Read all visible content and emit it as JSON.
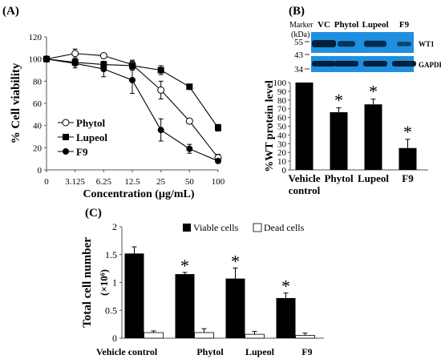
{
  "colors": {
    "bar_dark": "#000000",
    "bar_light": "#ffffff",
    "blot_bg": "#1f8fe0",
    "band": "#03203a"
  },
  "chart_data": [
    {
      "panel": "(A)",
      "type": "line",
      "xlabel": "Concentration (µg/mL)",
      "ylabel": "% Cell viability",
      "x_categories": [
        "0",
        "3.125",
        "6.25",
        "12.5",
        "25",
        "50",
        "100"
      ],
      "ylim": [
        0,
        120
      ],
      "yticks": [
        0,
        20,
        40,
        60,
        80,
        100,
        120
      ],
      "series": [
        {
          "name": "Phytol",
          "marker": "open-circle",
          "values": [
            100,
            105,
            103,
            95,
            72,
            44,
            11
          ],
          "errors": [
            0,
            4,
            2,
            4,
            8,
            0,
            3
          ]
        },
        {
          "name": "Lupeol",
          "marker": "filled-square",
          "values": [
            100,
            97,
            95,
            94,
            90,
            75,
            38
          ],
          "errors": [
            0,
            2,
            2,
            4,
            4,
            0,
            3
          ]
        },
        {
          "name": "F9",
          "marker": "filled-circle",
          "values": [
            100,
            96,
            91,
            81,
            36,
            19,
            8
          ],
          "errors": [
            0,
            4,
            7,
            12,
            10,
            4,
            1
          ]
        }
      ],
      "legend": "center-left"
    },
    {
      "panel": "(B)",
      "type": "bar",
      "ylabel": "%WT protein level",
      "categories": [
        "Vehicle\ncontrol",
        "Phytol",
        "Lupeol",
        "F9"
      ],
      "category_lines": [
        [
          "Vehicle",
          "control"
        ],
        [
          "Phytol"
        ],
        [
          "Lupeol"
        ],
        [
          "F9"
        ]
      ],
      "values": [
        100,
        66,
        75,
        25
      ],
      "errors": [
        0,
        5,
        6,
        10
      ],
      "significance": [
        "",
        "*",
        "*",
        "*"
      ],
      "ylim": [
        0,
        100
      ],
      "yticks": [
        0,
        10,
        20,
        30,
        40,
        50,
        60,
        70,
        80,
        90,
        100
      ],
      "blot": {
        "marker_title": [
          "Marker",
          "(kDa)"
        ],
        "marker_values": [
          "55",
          "43",
          "34"
        ],
        "lanes": [
          "VC",
          "Phytol",
          "Lupeol",
          "F9"
        ],
        "bands": [
          "WT1",
          "GAPDH"
        ],
        "wt1_intensity": [
          1.0,
          0.6,
          0.75,
          0.3
        ]
      }
    },
    {
      "panel": "(C)",
      "type": "bar",
      "ylabel": "Total cell number",
      "ylabel_unit": "(×10⁶)",
      "categories": [
        "Vehicle control",
        "Phytol",
        "Lupeol",
        "F9"
      ],
      "series": [
        {
          "name": "Viable cells",
          "values": [
            1.52,
            1.15,
            1.07,
            0.72
          ],
          "errors": [
            0.12,
            0.03,
            0.19,
            0.09
          ]
        },
        {
          "name": "Dead cells",
          "values": [
            0.1,
            0.1,
            0.07,
            0.05
          ],
          "errors": [
            0.03,
            0.07,
            0.05,
            0.04
          ]
        }
      ],
      "significance": [
        "",
        "*",
        "*",
        "*"
      ],
      "ylim": [
        0,
        2
      ],
      "yticks": [
        "0",
        "0.5",
        "1",
        "1.5",
        "2"
      ],
      "legend": "top"
    }
  ]
}
